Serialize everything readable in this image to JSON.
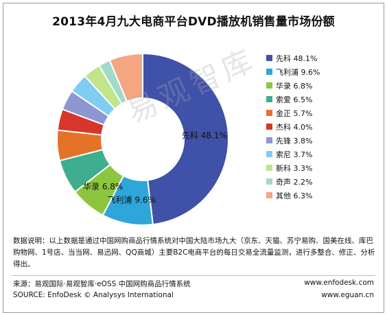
{
  "title": "2013年4月九大电商平台DVD播放机销售量市场份额",
  "watermark": "易观智库",
  "chart_data": {
    "type": "pie",
    "subtype": "donut",
    "title": "2013年4月九大电商平台DVD播放机销售量市场份额",
    "legend_position": "right",
    "slices": [
      {
        "label": "先科",
        "percent_label": "48.1%",
        "value": 48.1,
        "color": "#3f51a8"
      },
      {
        "label": "飞利浦",
        "percent_label": "9.6%",
        "value": 9.6,
        "color": "#2ea6d9"
      },
      {
        "label": "华录",
        "percent_label": "6.8%",
        "value": 6.8,
        "color": "#8cc63e"
      },
      {
        "label": "索爱",
        "percent_label": "6.5%",
        "value": 6.5,
        "color": "#3fae8e"
      },
      {
        "label": "金正",
        "percent_label": "5.7%",
        "value": 5.7,
        "color": "#e27327"
      },
      {
        "label": "杰科",
        "percent_label": "4.0%",
        "value": 4.0,
        "color": "#d8362b"
      },
      {
        "label": "先锋",
        "percent_label": "3.8%",
        "value": 3.8,
        "color": "#8e96d1"
      },
      {
        "label": "索尼",
        "percent_label": "3.7%",
        "value": 3.7,
        "color": "#7fcdf0"
      },
      {
        "label": "新科",
        "percent_label": "3.3%",
        "value": 3.3,
        "color": "#c2e48a"
      },
      {
        "label": "奇声",
        "percent_label": "2.2%",
        "value": 2.2,
        "color": "#9fdcc8"
      },
      {
        "label": "其他",
        "percent_label": "6.3%",
        "value": 6.3,
        "color": "#f4a582"
      }
    ],
    "data_labels": [
      {
        "text": "先科  48.1%",
        "slice": "先科"
      },
      {
        "text": "飞利浦  9.6%",
        "slice": "飞利浦"
      },
      {
        "text": "华录  6.8%",
        "slice": "华录"
      }
    ]
  },
  "note": "数据说明：以上数据是通过中国网购商品行情系统对中国大陆市场九大（京东、天猫、苏宁易购、国美在线、库巴购物网、1号店、当当网、易迅网、QQ商城）主要B2C电商平台的每日交易全流量监测，进行多整合、修正、分析得出。",
  "footer": {
    "source_cn": "来源：易观国际·易观智库·eOSS 中国网购商品行情系统",
    "source_en": "SOURCE: EnfoDesk © Analysys International",
    "url1": "www.enfodesk.com",
    "url2": "www.eguan.cn"
  }
}
